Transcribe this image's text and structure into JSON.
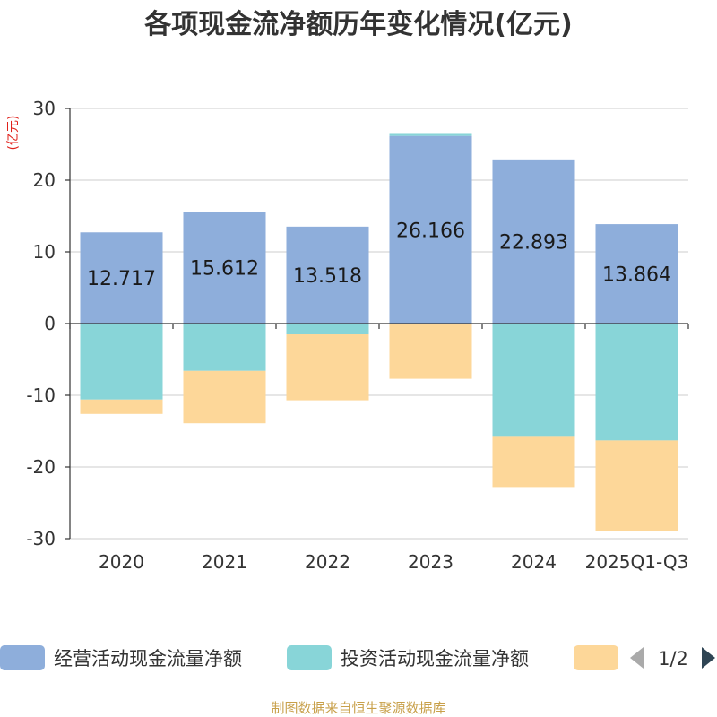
{
  "chart_data": {
    "type": "bar",
    "stacked": true,
    "title": "各项现金流净额历年变化情况(亿元)",
    "ylabel": "(亿元)",
    "xlabel": "",
    "ylim": [
      -30,
      30
    ],
    "yticks": [
      30,
      20,
      10,
      0,
      -10,
      -20,
      -30
    ],
    "grid": true,
    "categories": [
      "2020",
      "2021",
      "2022",
      "2023",
      "2024",
      "2025Q1-Q3"
    ],
    "series": [
      {
        "name": "经营活动现金流量净额",
        "color": "#8eaedb",
        "values": [
          12.717,
          15.612,
          13.518,
          26.166,
          22.893,
          13.864
        ]
      },
      {
        "name": "投资活动现金流量净额",
        "color": "#88d5d8",
        "values": [
          -10.6,
          -6.6,
          -1.5,
          0.4,
          -15.8,
          -16.3
        ]
      },
      {
        "name": "",
        "color": "#fdd799",
        "values": [
          -2.0,
          -7.3,
          -9.2,
          -7.7,
          -7.0,
          -12.6
        ]
      }
    ],
    "data_labels": [
      "12.717",
      "15.612",
      "13.518",
      "26.166",
      "22.893",
      "13.864"
    ],
    "legend_position": "bottom",
    "legend_page": "1/2",
    "source": "制图数据来自恒生聚源数据库"
  }
}
